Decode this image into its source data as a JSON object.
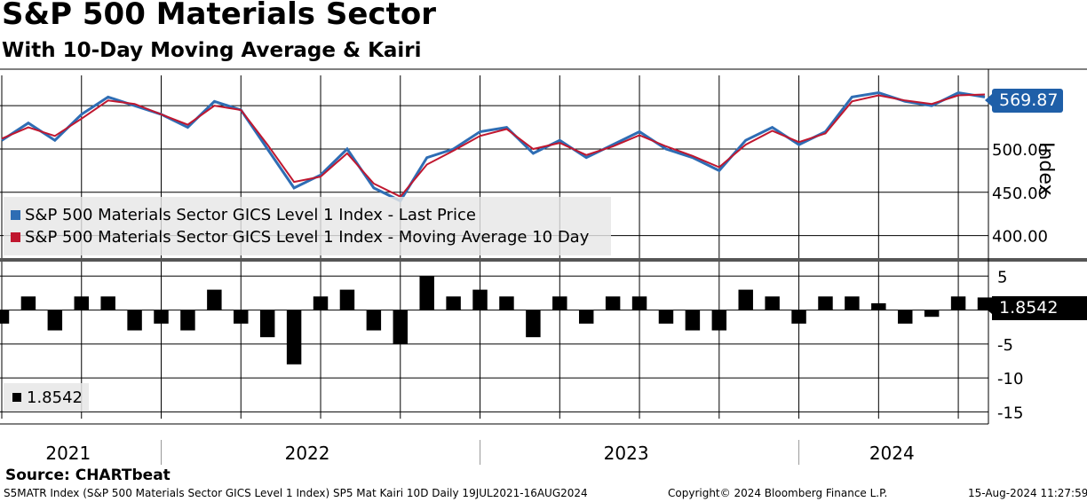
{
  "header": {
    "title": "S&P 500 Materials Sector",
    "subtitle": "With 10-Day Moving Average & Kairi"
  },
  "price_panel": {
    "yaxis_label": "Index",
    "ticks": [
      "400.00",
      "450.00",
      "500.00"
    ],
    "last_value_tag": "569.87",
    "legend": [
      {
        "label": "S&P 500 Materials Sector GICS Level 1 Index - Last Price",
        "color": "#2e6db4"
      },
      {
        "label": "S&P 500 Materials Sector GICS Level 1 Index - Moving Average 10 Day",
        "color": "#c0172f"
      }
    ]
  },
  "kairi_panel": {
    "ticks": [
      "5",
      "0",
      "-5",
      "-10",
      "-15"
    ],
    "last_value_tag": "1.8542",
    "legend_value": "1.8542"
  },
  "xaxis": {
    "labels": [
      "2021",
      "2022",
      "2023",
      "2024"
    ]
  },
  "footer": {
    "source": "Source: CHARTbeat",
    "security": "S5MATR Index (S&P 500 Materials Sector GICS Level 1 Index) SP5 Mat Kairi 10D  Daily 19JUL2021-16AUG2024",
    "copyright": "Copyright© 2024 Bloomberg Finance L.P.",
    "timestamp": "15-Aug-2024 11:27:59"
  },
  "chart_data": [
    {
      "type": "line",
      "x": [
        "2021-07",
        "2021-08",
        "2021-09",
        "2021-10",
        "2021-11",
        "2021-12",
        "2022-01",
        "2022-02",
        "2022-03",
        "2022-04",
        "2022-05",
        "2022-06",
        "2022-07",
        "2022-08",
        "2022-09",
        "2022-10",
        "2022-11",
        "2022-12",
        "2023-01",
        "2023-02",
        "2023-03",
        "2023-04",
        "2023-05",
        "2023-06",
        "2023-07",
        "2023-08",
        "2023-09",
        "2023-10",
        "2023-11",
        "2023-12",
        "2024-01",
        "2024-02",
        "2024-03",
        "2024-04",
        "2024-05",
        "2024-06",
        "2024-07",
        "2024-08"
      ],
      "series": [
        {
          "name": "S&P 500 Materials Sector GICS Level 1 Index - Last Price",
          "values": [
            510,
            530,
            510,
            540,
            560,
            550,
            540,
            525,
            555,
            545,
            500,
            455,
            470,
            500,
            455,
            440,
            490,
            500,
            520,
            525,
            495,
            510,
            490,
            505,
            520,
            500,
            490,
            475,
            510,
            525,
            505,
            520,
            560,
            565,
            555,
            550,
            565,
            560
          ]
        },
        {
          "name": "S&P 500 Materials Sector GICS Level 1 Index - Moving Average 10 Day",
          "values": [
            512,
            525,
            515,
            535,
            556,
            552,
            540,
            528,
            550,
            545,
            505,
            462,
            468,
            495,
            460,
            445,
            482,
            498,
            515,
            523,
            500,
            507,
            493,
            503,
            516,
            503,
            492,
            479,
            505,
            521,
            508,
            518,
            555,
            562,
            556,
            552,
            562,
            563
          ]
        }
      ],
      "ylim": [
        375,
        585
      ],
      "yaxis_label": "Index",
      "last_value": 569.87
    },
    {
      "type": "bar",
      "x": [
        "2021-07",
        "2021-08",
        "2021-09",
        "2021-10",
        "2021-11",
        "2021-12",
        "2022-01",
        "2022-02",
        "2022-03",
        "2022-04",
        "2022-05",
        "2022-06",
        "2022-07",
        "2022-08",
        "2022-09",
        "2022-10",
        "2022-11",
        "2022-12",
        "2023-01",
        "2023-02",
        "2023-03",
        "2023-04",
        "2023-05",
        "2023-06",
        "2023-07",
        "2023-08",
        "2023-09",
        "2023-10",
        "2023-11",
        "2023-12",
        "2024-01",
        "2024-02",
        "2024-03",
        "2024-04",
        "2024-05",
        "2024-06",
        "2024-07",
        "2024-08"
      ],
      "series": [
        {
          "name": "Kairi",
          "values": [
            -2,
            2,
            -3,
            2,
            2,
            -3,
            -2,
            -3,
            3,
            -2,
            -4,
            -8,
            2,
            3,
            -3,
            -5,
            5,
            2,
            3,
            2,
            -4,
            2,
            -2,
            2,
            2,
            -2,
            -3,
            -3,
            3,
            2,
            -2,
            2,
            2,
            1,
            -2,
            -1,
            2,
            1.85
          ]
        }
      ],
      "ylim": [
        -16,
        7
      ],
      "last_value": 1.8542
    }
  ]
}
